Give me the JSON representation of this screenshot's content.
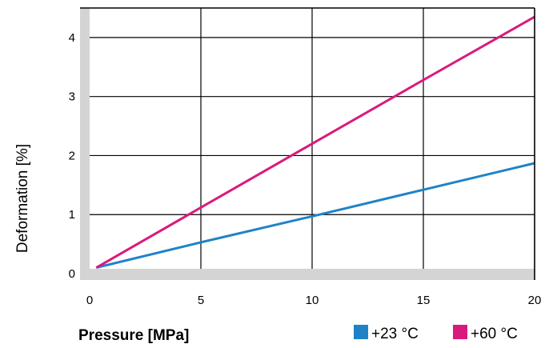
{
  "chart_data": {
    "type": "line",
    "xlabel": "Pressure [MPa]",
    "ylabel": "Deformation [%]",
    "xlim": [
      0,
      20
    ],
    "ylim": [
      0,
      4.5
    ],
    "x_ticks": [
      "0",
      "5",
      "10",
      "15",
      "20"
    ],
    "y_ticks": [
      "0",
      "1",
      "2",
      "3",
      "4"
    ],
    "grid": true,
    "legend_position": "bottom-right",
    "series": [
      {
        "name": "+23 °C",
        "color": "#1f82c7",
        "x": [
          0.3,
          5,
          10,
          15,
          20
        ],
        "y": [
          0.1,
          0.53,
          0.97,
          1.42,
          1.87
        ]
      },
      {
        "name": "+60 °C",
        "color": "#d91a7d",
        "x": [
          0.3,
          5,
          10,
          15,
          20
        ],
        "y": [
          0.1,
          1.12,
          2.2,
          3.28,
          4.35
        ]
      }
    ]
  }
}
